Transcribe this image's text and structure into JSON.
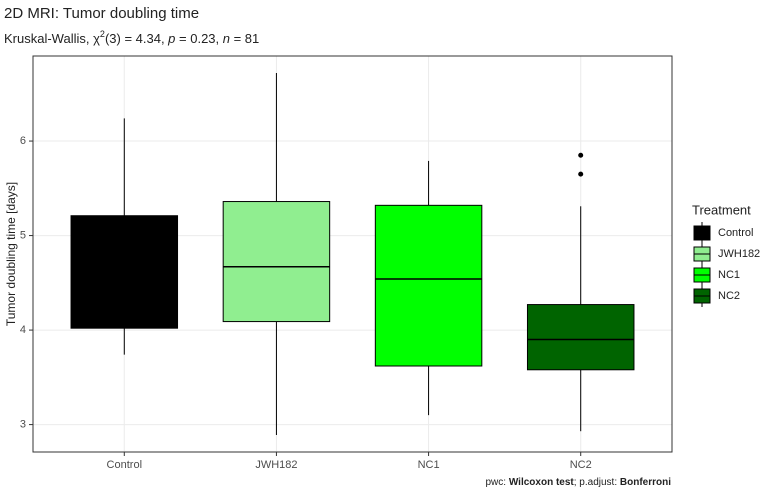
{
  "chart_data": {
    "type": "box",
    "title": "2D MRI: Tumor doubling time",
    "subtitle": [
      "Kruskal-Wallis, χ",
      "2",
      "(3) = 4.34, ",
      "p",
      " = 0.23, ",
      "n",
      " = 81"
    ],
    "caption": [
      "pwc: ",
      "Wilcoxon test",
      "; p.adjust: ",
      "Bonferroni"
    ],
    "y_label": "Tumor doubling time [days]",
    "legend_title": "Treatment",
    "ylim": [
      2.71,
      6.9
    ],
    "yticks": [
      3,
      4,
      5,
      6
    ],
    "grid": true,
    "boxes": [
      {
        "name": "Control",
        "color": "#000000",
        "min": 3.74,
        "q1": 4.02,
        "median": 4.6,
        "q3": 5.21,
        "max": 6.24,
        "outliers": []
      },
      {
        "name": "JWH182",
        "color": "#90ee90",
        "min": 2.89,
        "q1": 4.09,
        "median": 4.67,
        "q3": 5.36,
        "max": 6.72,
        "outliers": []
      },
      {
        "name": "NC1",
        "color": "#00ff00",
        "min": 3.1,
        "q1": 3.62,
        "median": 4.54,
        "q3": 5.32,
        "max": 5.79,
        "outliers": []
      },
      {
        "name": "NC2",
        "color": "#006400",
        "min": 2.93,
        "q1": 3.58,
        "median": 3.9,
        "q3": 4.27,
        "max": 5.31,
        "outliers": [
          5.85,
          5.65
        ]
      }
    ]
  }
}
